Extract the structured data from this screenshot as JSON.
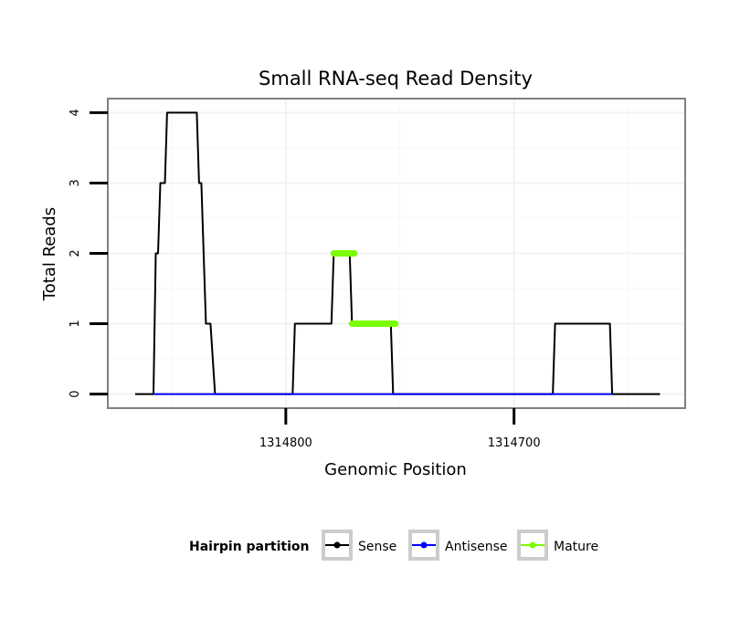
{
  "chart_data": {
    "type": "line",
    "title": "Small RNA-seq Read Density",
    "xlabel": "Genomic Position",
    "ylabel": "Total Reads",
    "xlim": [
      1314878,
      1314625
    ],
    "ylim": [
      -0.2,
      4.2
    ],
    "x_reversed": true,
    "x_ticks": [
      1314800,
      1314700
    ],
    "x_tick_labels": [
      "1314800",
      "1314700"
    ],
    "y_ticks": [
      0,
      1,
      2,
      3,
      4
    ],
    "y_tick_labels": [
      "0",
      "1",
      "2",
      "3",
      "4"
    ],
    "grid": true,
    "legend": {
      "title": "Hairpin partition",
      "position": "bottom",
      "entries": [
        {
          "label": "Sense",
          "color": "#000000"
        },
        {
          "label": "Antisense",
          "color": "#0000ff"
        },
        {
          "label": "Mature",
          "color": "#7cfc00"
        }
      ]
    },
    "series": [
      {
        "name": "Sense",
        "color": "#000000",
        "points": [
          [
            1314866,
            0
          ],
          [
            1314858,
            0
          ],
          [
            1314857,
            2
          ],
          [
            1314856,
            2
          ],
          [
            1314855,
            3
          ],
          [
            1314853,
            3
          ],
          [
            1314852,
            4
          ],
          [
            1314839,
            4
          ],
          [
            1314838,
            3
          ],
          [
            1314837,
            3
          ],
          [
            1314835,
            1
          ],
          [
            1314833,
            1
          ],
          [
            1314831,
            0
          ],
          [
            1314797,
            0
          ],
          [
            1314796,
            1
          ],
          [
            1314780,
            1
          ],
          [
            1314779,
            2
          ],
          [
            1314772,
            2
          ],
          [
            1314771,
            1
          ],
          [
            1314754,
            1
          ],
          [
            1314753,
            0
          ],
          [
            1314683,
            0
          ],
          [
            1314682,
            1
          ],
          [
            1314658,
            1
          ],
          [
            1314657,
            0
          ],
          [
            1314636,
            0
          ]
        ]
      },
      {
        "name": "Antisense",
        "color": "#0000ff",
        "points": [
          [
            1314858,
            0
          ],
          [
            1314831,
            0
          ],
          [
            1314797,
            0
          ],
          [
            1314753,
            0
          ],
          [
            1314683,
            0
          ],
          [
            1314657,
            0
          ]
        ]
      },
      {
        "name": "Mature",
        "color": "#7cfc00",
        "segments": [
          {
            "x": [
              1314779,
              1314770
            ],
            "y": 2
          },
          {
            "x": [
              1314771,
              1314752
            ],
            "y": 1
          }
        ]
      }
    ]
  }
}
